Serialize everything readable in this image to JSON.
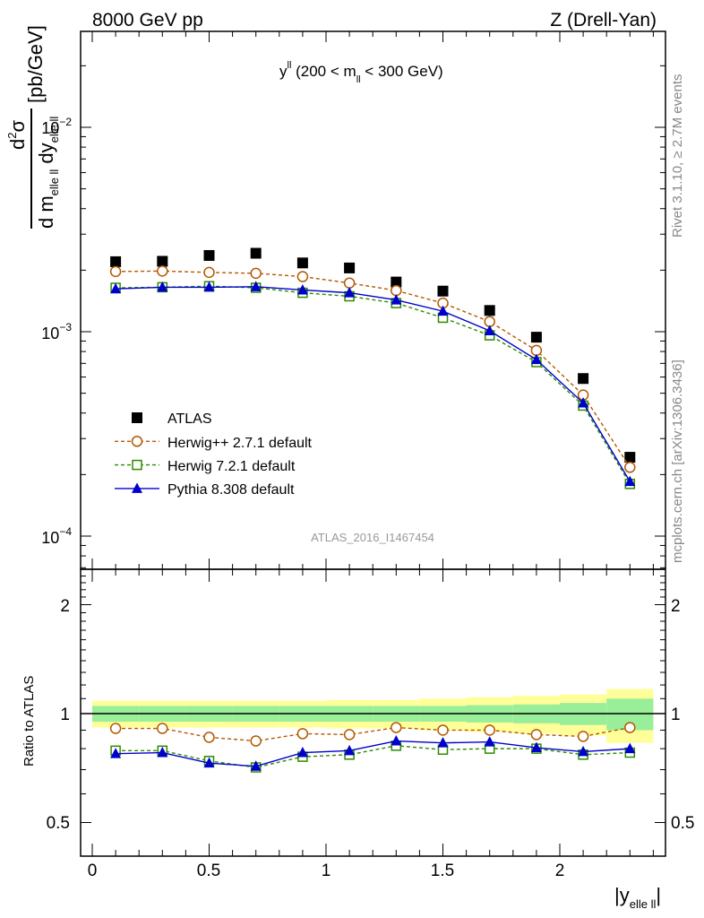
{
  "header": {
    "left": "8000 GeV pp",
    "right": "Z (Drell-Yan)"
  },
  "side_labels": {
    "rivet": "Rivet 3.1.10, ≥ 2.7M events",
    "mcplots": "mcplots.cern.ch [arXiv:1306.3436]"
  },
  "watermark": "ATLAS_2016_I1467454",
  "main_panel": {
    "title_main": "y",
    "title_sup": "ll",
    "title_rest_a": " (200 < m",
    "title_sub": "ll",
    "title_rest_b": " < 300 GeV)",
    "ylabel": {
      "num_d": "d",
      "num_sup": "2",
      "num_sigma": "σ",
      "den_d": "d m",
      "den_sub1": "elle ll",
      "den_dy": " dy",
      "den_sub2": "elle ll",
      "unit": "[pb/GeV]"
    },
    "yticks": [
      {
        "base": "10",
        "exp": "−2"
      },
      {
        "base": "10",
        "exp": "−3"
      },
      {
        "base": "10",
        "exp": "−4"
      }
    ]
  },
  "ratio_panel": {
    "ylabel": "Ratio to ATLAS",
    "yticks": [
      "2",
      "1",
      "0.5"
    ]
  },
  "x_axis": {
    "ticks": [
      "0",
      "0.5",
      "1",
      "1.5",
      "2"
    ],
    "label_main": "|y",
    "label_sub": "elle ll",
    "label_end": "|"
  },
  "legend": [
    {
      "label": "ATLAS",
      "color": "#000000",
      "marker": "filled-square",
      "line": "none"
    },
    {
      "label": "Herwig++ 2.7.1 default",
      "color": "#b35900",
      "marker": "open-circle",
      "line": "dashed"
    },
    {
      "label": "Herwig 7.2.1 default",
      "color": "#2e8b00",
      "marker": "open-square",
      "line": "dashed"
    },
    {
      "label": "Pythia 8.308 default",
      "color": "#0000cc",
      "marker": "filled-triangle",
      "line": "solid"
    }
  ],
  "chart_data": {
    "type": "scatter",
    "x": [
      0.1,
      0.3,
      0.5,
      0.7,
      0.9,
      1.1,
      1.3,
      1.5,
      1.7,
      1.9,
      2.1,
      2.3
    ],
    "x_edges": [
      0,
      0.2,
      0.4,
      0.6,
      0.8,
      1.0,
      1.2,
      1.4,
      1.6,
      1.8,
      2.0,
      2.2,
      2.4
    ],
    "xlim": [
      -0.05,
      2.45
    ],
    "main_ylim": [
      7.5e-05,
      0.03
    ],
    "main_yscale": "log",
    "ratio_ylim": [
      0.4,
      2.5
    ],
    "ratio_yscale": "log",
    "series": [
      {
        "name": "ATLAS",
        "values": [
          0.0022,
          0.00221,
          0.00236,
          0.00242,
          0.00217,
          0.00205,
          0.00175,
          0.00158,
          0.00127,
          0.00094,
          0.00059,
          0.000243
        ]
      },
      {
        "name": "Herwig++ 2.7.1 default",
        "values": [
          0.00197,
          0.00198,
          0.00195,
          0.00193,
          0.00186,
          0.00173,
          0.00159,
          0.00138,
          0.00112,
          0.00081,
          0.00049,
          0.000217
        ]
      },
      {
        "name": "Herwig 7.2.1 default",
        "values": [
          0.00164,
          0.00165,
          0.00167,
          0.00164,
          0.00155,
          0.00149,
          0.00138,
          0.00117,
          0.00096,
          0.00071,
          0.000435,
          0.00018
        ]
      },
      {
        "name": "Pythia 8.308 default",
        "values": [
          0.00162,
          0.00165,
          0.00165,
          0.00166,
          0.0016,
          0.00155,
          0.00143,
          0.00126,
          0.00101,
          0.00073,
          0.000448,
          0.000185
        ]
      }
    ],
    "ratios": {
      "Herwig++ 2.7.1 default": [
        0.91,
        0.91,
        0.86,
        0.84,
        0.88,
        0.875,
        0.915,
        0.9,
        0.9,
        0.875,
        0.865,
        0.915
      ],
      "Herwig 7.2.1 default": [
        0.79,
        0.79,
        0.74,
        0.71,
        0.76,
        0.77,
        0.815,
        0.795,
        0.8,
        0.8,
        0.77,
        0.78
      ],
      "Pythia 8.308 default": [
        0.775,
        0.78,
        0.73,
        0.715,
        0.78,
        0.79,
        0.84,
        0.83,
        0.835,
        0.805,
        0.785,
        0.8
      ]
    },
    "uncertainty_band_inner": [
      0.05,
      0.05,
      0.05,
      0.05,
      0.05,
      0.05,
      0.05,
      0.05,
      0.055,
      0.06,
      0.07,
      0.1
    ],
    "uncertainty_band_outer": [
      0.085,
      0.085,
      0.085,
      0.085,
      0.085,
      0.09,
      0.09,
      0.1,
      0.11,
      0.12,
      0.13,
      0.17
    ]
  }
}
